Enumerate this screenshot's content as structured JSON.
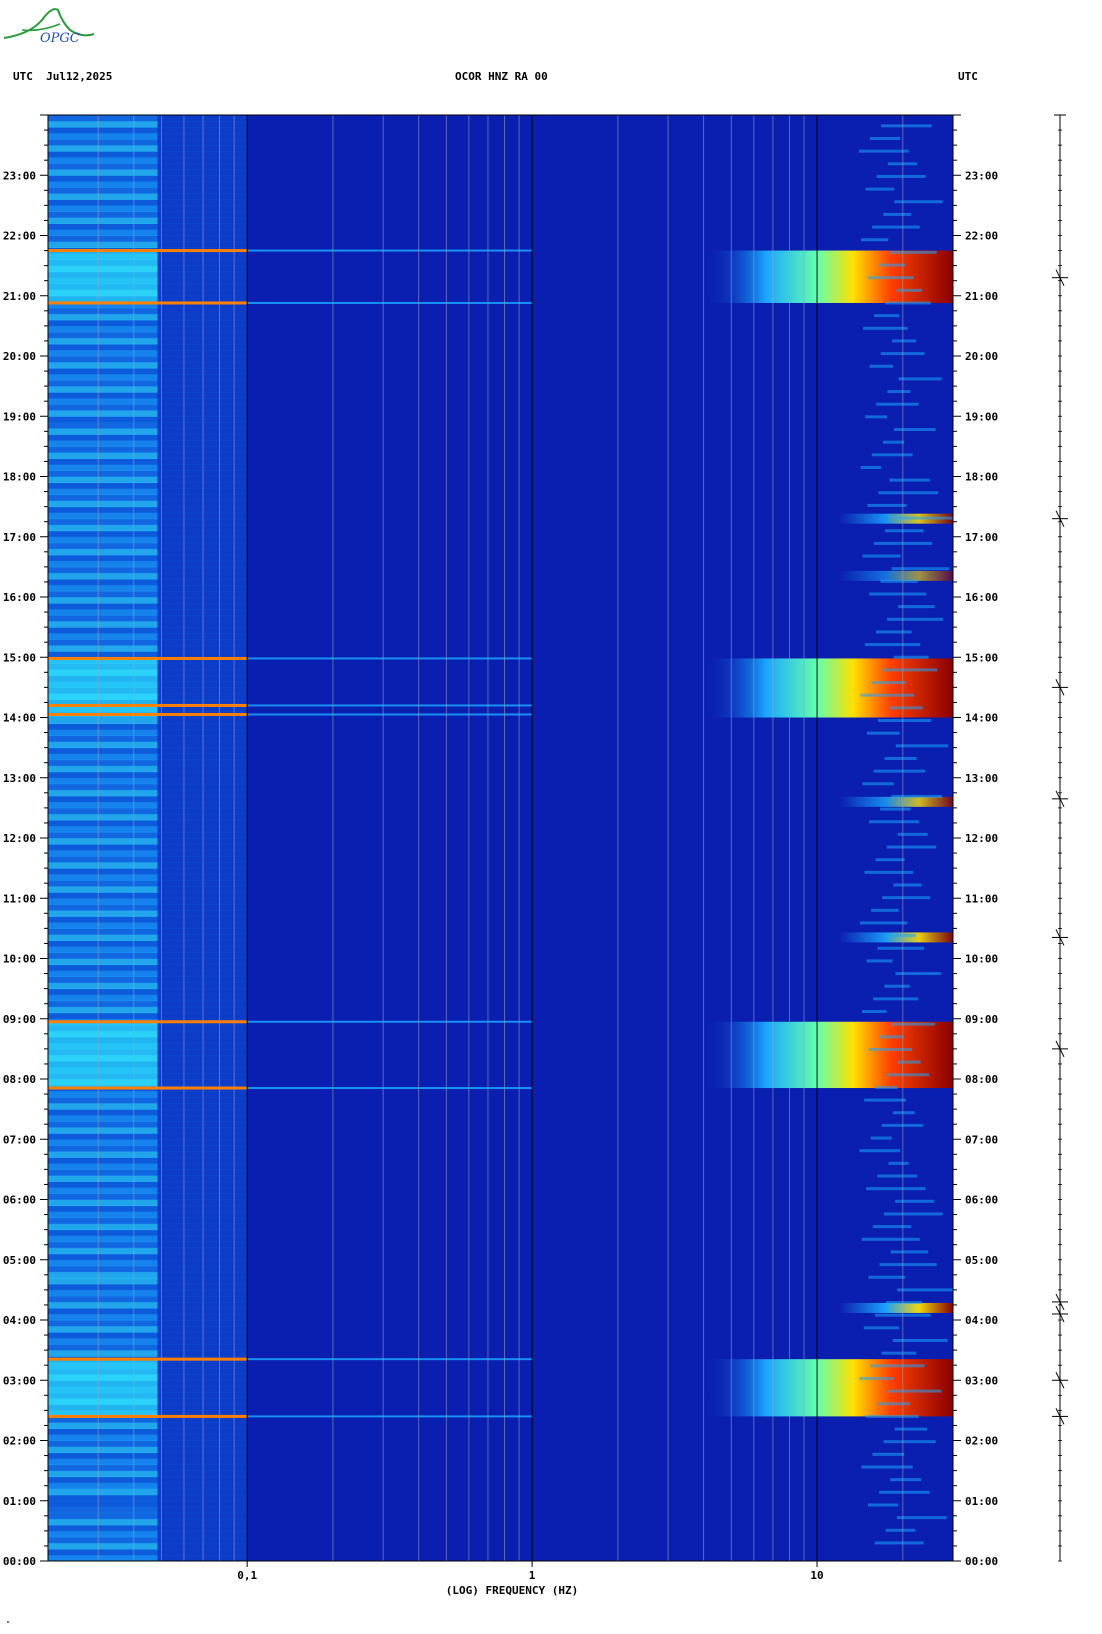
{
  "header": {
    "left": "UTC  Jul12,2025",
    "center": "OCOR HNZ RA 00",
    "right": "UTC"
  },
  "logo_text": "OPGC",
  "footer_mark": "\"",
  "chart_data": {
    "type": "heatmap",
    "title": "OCOR HNZ RA 00",
    "xlabel": "(LOG) FREQUENCY (HZ)",
    "ylabel": "UTC",
    "x_scale": "log",
    "xlim": [
      0.02,
      30
    ],
    "x_tick_labels": [
      {
        "value": 0.1,
        "label": "0,1"
      },
      {
        "value": 1,
        "label": "1"
      },
      {
        "value": 10,
        "label": "10"
      }
    ],
    "ylim_hours": [
      0,
      24
    ],
    "y_tick_labels": [
      "00:00",
      "01:00",
      "02:00",
      "03:00",
      "04:00",
      "05:00",
      "06:00",
      "07:00",
      "08:00",
      "09:00",
      "10:00",
      "11:00",
      "12:00",
      "13:00",
      "14:00",
      "15:00",
      "16:00",
      "17:00",
      "18:00",
      "19:00",
      "20:00",
      "21:00",
      "22:00",
      "23:00"
    ],
    "grid": true,
    "colors": {
      "background": "#0a1fb0",
      "low": "#0a1fb0",
      "mid": "#1aa6ff",
      "high": "#ffe000",
      "max": "#8a0000"
    },
    "background_band": {
      "freq_range": [
        0.02,
        0.1
      ],
      "intensity": 0.45
    },
    "high_energy_bands": [
      {
        "start": 2.4,
        "end": 3.35,
        "intensity": 1.0
      },
      {
        "start": 7.85,
        "end": 8.95,
        "intensity": 1.0
      },
      {
        "start": 14.0,
        "end": 14.98,
        "intensity": 1.0
      },
      {
        "start": 20.88,
        "end": 21.75,
        "intensity": 1.0
      }
    ],
    "event_lines": [
      {
        "hour": 2.4
      },
      {
        "hour": 3.35
      },
      {
        "hour": 7.85
      },
      {
        "hour": 8.95
      },
      {
        "hour": 14.05
      },
      {
        "hour": 14.2
      },
      {
        "hour": 14.98
      },
      {
        "hour": 20.88
      },
      {
        "hour": 21.75
      }
    ],
    "high_freq_events": [
      {
        "hour": 4.2,
        "intensity": 0.95
      },
      {
        "hour": 10.35,
        "intensity": 0.9
      },
      {
        "hour": 12.6,
        "intensity": 0.8
      },
      {
        "hour": 16.35,
        "intensity": 0.6
      },
      {
        "hour": 17.3,
        "intensity": 0.85
      }
    ],
    "side_trace_events_hours": [
      2.4,
      3.0,
      4.1,
      4.3,
      10.35,
      12.65,
      14.5,
      17.3,
      8.5,
      21.3
    ]
  }
}
